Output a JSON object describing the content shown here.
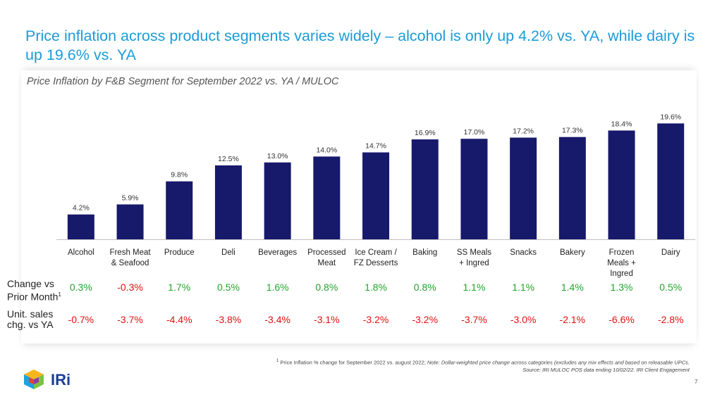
{
  "headline": "Price inflation across product segments varies widely – alcohol is only up 4.2% vs. YA, while dairy is up 19.6% vs. YA",
  "subtitle": "Price Inflation by F&B Segment for September 2022 vs. YA / MULOC",
  "colors": {
    "bar": "#17196b",
    "headline": "#1a9cd8",
    "positive": "#22a52b",
    "negative": "#e01010"
  },
  "chart_data": {
    "type": "bar",
    "title": "Price Inflation by F&B Segment for September 2022 vs. YA / MULOC",
    "categories": [
      [
        "Alcohol"
      ],
      [
        "Fresh Meat",
        "& Seafood"
      ],
      [
        "Produce"
      ],
      [
        "Deli"
      ],
      [
        "Beverages"
      ],
      [
        "Processed",
        "Meat"
      ],
      [
        "Ice Cream /",
        "FZ Desserts"
      ],
      [
        "Baking"
      ],
      [
        "SS Meals",
        "+ Ingred"
      ],
      [
        "Snacks"
      ],
      [
        "Bakery"
      ],
      [
        "Frozen",
        "Meals +",
        "Ingred"
      ],
      [
        "Dairy"
      ]
    ],
    "values": [
      4.2,
      5.9,
      9.8,
      12.5,
      13.0,
      14.0,
      14.7,
      16.9,
      17.0,
      17.2,
      17.3,
      18.4,
      19.6
    ],
    "value_labels": [
      "4.2%",
      "5.9%",
      "9.8%",
      "12.5%",
      "13.0%",
      "14.0%",
      "14.7%",
      "16.9%",
      "17.0%",
      "17.2%",
      "17.3%",
      "18.4%",
      "19.6%"
    ],
    "ylim": [
      0,
      20
    ],
    "grid": false,
    "legend": "none",
    "xlabel": "",
    "ylabel": ""
  },
  "metrics": [
    {
      "label_lines": [
        "Change vs",
        "Prior Month"
      ],
      "footnote_mark": "1",
      "values": [
        "0.3%",
        "-0.3%",
        "1.7%",
        "0.5%",
        "1.6%",
        "0.8%",
        "1.8%",
        "0.8%",
        "1.1%",
        "1.1%",
        "1.4%",
        "1.3%",
        "0.5%"
      ],
      "signs": [
        "+",
        "-",
        "+",
        "+",
        "+",
        "+",
        "+",
        "+",
        "+",
        "+",
        "+",
        "+",
        "+"
      ]
    },
    {
      "label_lines": [
        "Unit. sales",
        "chg. vs YA"
      ],
      "footnote_mark": "",
      "values": [
        "-0.7%",
        "-3.7%",
        "-4.4%",
        "-3.8%",
        "-3.4%",
        "-3.1%",
        "-3.2%",
        "-3.2%",
        "-3.7%",
        "-3.0%",
        "-2.1%",
        "-6.6%",
        "-2.8%"
      ],
      "signs": [
        "-",
        "-",
        "-",
        "-",
        "-",
        "-",
        "-",
        "-",
        "-",
        "-",
        "-",
        "-",
        "-"
      ]
    }
  ],
  "footnote": {
    "mark": "1",
    "line1_main": " Price Inflation % change  for September 2022 vs. august 2022; ",
    "line1_note": "Note: Dollar-weighted price change across categories (excludes any mix effects and based on releasable UPCs.",
    "line2": "Source: IRI MULOC POS data ending 10/02/22. IRI Client Engagement"
  },
  "logo": {
    "text": "IRi"
  },
  "page_number": "7"
}
